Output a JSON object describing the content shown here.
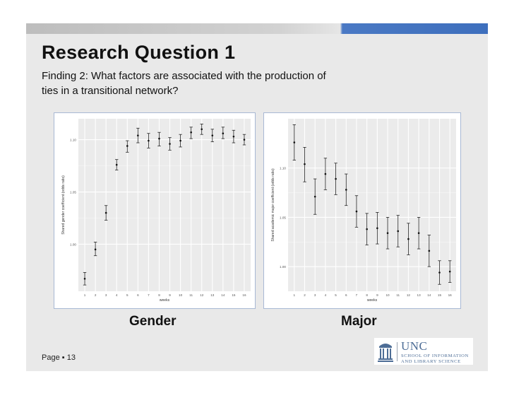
{
  "slide": {
    "title": "Research Question 1",
    "subtitle": "Finding 2: What factors are associated with the production of ties in a transitional network?",
    "page_label": "Page ▪ 13"
  },
  "captions": {
    "left": "Gender",
    "right": "Major"
  },
  "logo": {
    "name": "UNC",
    "line1": "SCHOOL OF INFORMATION",
    "line2": "AND LIBRARY SCIENCE",
    "color": "#4d6d96"
  },
  "colors": {
    "slide_bg": "#e9e9e9",
    "accent_blue": "#3e6fbd",
    "panel_border": "#a8b8d4",
    "plot_bg": "#ebebeb"
  },
  "chart_data": [
    {
      "type": "scatter",
      "title": "",
      "xlabel": "weeks",
      "ylabel": "Shared gender coefficient (odds ratio)",
      "x": [
        1,
        2,
        3,
        4,
        5,
        6,
        7,
        8,
        9,
        10,
        11,
        12,
        13,
        14,
        15,
        16
      ],
      "y": [
        0.967,
        0.995,
        1.03,
        1.076,
        1.094,
        1.104,
        1.099,
        1.101,
        1.096,
        1.099,
        1.107,
        1.11,
        1.104,
        1.106,
        1.103,
        1.1
      ],
      "y_low": [
        0.961,
        0.989,
        1.023,
        1.071,
        1.088,
        1.097,
        1.092,
        1.094,
        1.09,
        1.093,
        1.101,
        1.105,
        1.098,
        1.101,
        1.097,
        1.095
      ],
      "y_high": [
        0.973,
        1.002,
        1.037,
        1.081,
        1.099,
        1.111,
        1.106,
        1.107,
        1.102,
        1.105,
        1.112,
        1.115,
        1.11,
        1.112,
        1.109,
        1.105
      ],
      "ylim": [
        0.955,
        1.12
      ],
      "yticks": [
        1.0,
        1.05,
        1.1
      ],
      "ytick_labels": [
        "1.00",
        "1.05",
        "1.10"
      ],
      "xticks": [
        1,
        2,
        3,
        4,
        5,
        6,
        7,
        8,
        9,
        10,
        11,
        12,
        13,
        14,
        15,
        16
      ],
      "grid": true
    },
    {
      "type": "scatter",
      "title": "",
      "xlabel": "weeks",
      "ylabel": "Shared academic major coefficient (odds ratio)",
      "x": [
        1,
        2,
        3,
        4,
        5,
        6,
        7,
        8,
        9,
        10,
        11,
        12,
        13,
        14,
        15,
        16
      ],
      "y": [
        1.126,
        1.104,
        1.071,
        1.094,
        1.089,
        1.078,
        1.056,
        1.038,
        1.039,
        1.034,
        1.036,
        1.028,
        1.034,
        1.016,
        0.994,
        0.995
      ],
      "y_low": [
        1.108,
        1.086,
        1.053,
        1.078,
        1.073,
        1.062,
        1.04,
        1.022,
        1.023,
        1.018,
        1.02,
        1.012,
        1.018,
        1.0,
        0.982,
        0.984
      ],
      "y_high": [
        1.144,
        1.121,
        1.089,
        1.11,
        1.105,
        1.094,
        1.072,
        1.054,
        1.055,
        1.05,
        1.052,
        1.044,
        1.05,
        1.032,
        1.006,
        1.006
      ],
      "ylim": [
        0.975,
        1.15
      ],
      "yticks": [
        1.0,
        1.05,
        1.1
      ],
      "ytick_labels": [
        "1.00",
        "1.05",
        "1.10"
      ],
      "xticks": [
        1,
        2,
        3,
        4,
        5,
        6,
        7,
        8,
        9,
        10,
        11,
        12,
        13,
        14,
        15,
        16
      ],
      "grid": true
    }
  ]
}
